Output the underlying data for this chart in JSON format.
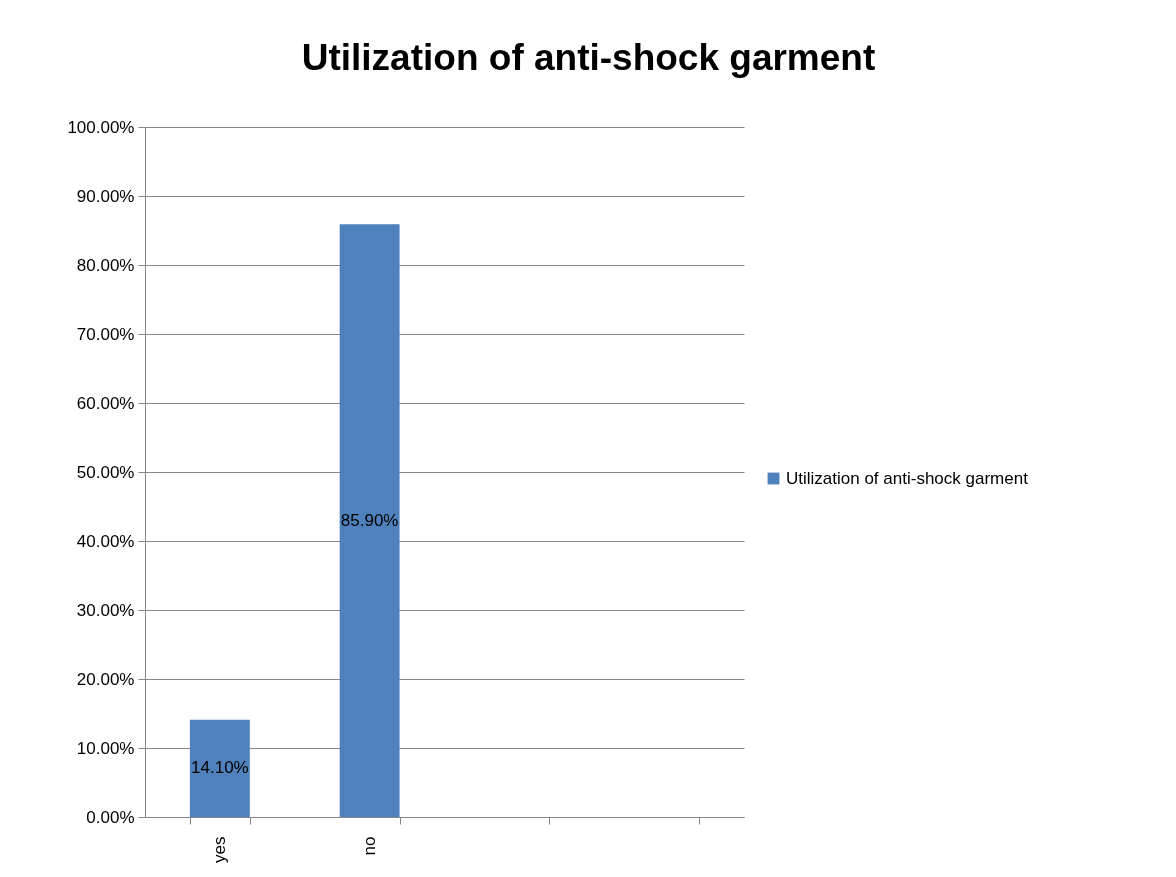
{
  "chart_data": {
    "type": "bar",
    "title": "Utilization of anti-shock garment",
    "categories": [
      "yes",
      "no",
      null,
      null
    ],
    "series": [
      {
        "name": "Utilization of anti-shock garment",
        "color": "#4f81bd",
        "values": [
          14.1,
          85.9,
          null,
          null
        ],
        "value_labels": [
          "14.10%",
          "85.90%",
          null,
          null
        ]
      }
    ],
    "ylim": [
      0,
      100
    ],
    "yticks": [
      {
        "value": 0,
        "label": "0.00%"
      },
      {
        "value": 10,
        "label": "10.00%"
      },
      {
        "value": 20,
        "label": "20.00%"
      },
      {
        "value": 30,
        "label": "30.00%"
      },
      {
        "value": 40,
        "label": "40.00%"
      },
      {
        "value": 50,
        "label": "50.00%"
      },
      {
        "value": 60,
        "label": "60.00%"
      },
      {
        "value": 70,
        "label": "70.00%"
      },
      {
        "value": 80,
        "label": "80.00%"
      },
      {
        "value": 90,
        "label": "90.00%"
      },
      {
        "value": 100,
        "label": "100.00%"
      }
    ],
    "grid": "y",
    "legend": "right"
  }
}
